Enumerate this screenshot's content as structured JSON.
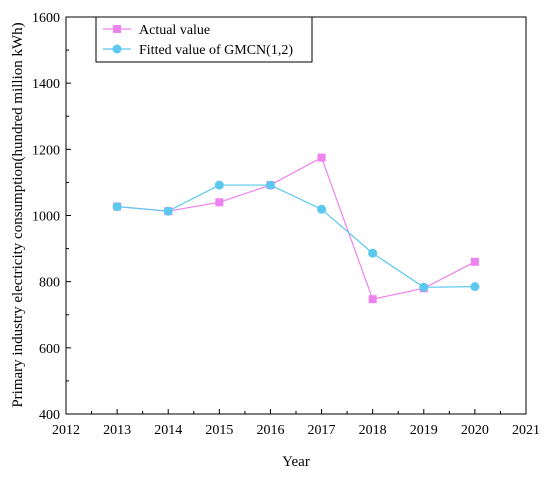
{
  "chart_data": {
    "type": "line",
    "xlabel": "Year",
    "ylabel": "Primary industry electricity consumption(hundred million kWh)",
    "xlim": [
      2012,
      2021
    ],
    "ylim": [
      400,
      1600
    ],
    "x_ticks": [
      2012,
      2013,
      2014,
      2015,
      2016,
      2017,
      2018,
      2019,
      2020,
      2021
    ],
    "y_ticks": [
      400,
      600,
      800,
      1000,
      1200,
      1400,
      1600
    ],
    "grid": false,
    "legend_position": "top-left",
    "series": [
      {
        "name": "Actual value",
        "marker": "square",
        "color": "#ee82ee",
        "x": [
          2013,
          2014,
          2015,
          2016,
          2017,
          2018,
          2019,
          2020
        ],
        "y": [
          1027,
          1013,
          1040,
          1092,
          1175,
          747,
          780,
          860
        ]
      },
      {
        "name": "Fitted value of GMCN(1,2)",
        "marker": "circle",
        "color": "#5bc8ee",
        "x": [
          2013,
          2014,
          2015,
          2016,
          2017,
          2018,
          2019,
          2020
        ],
        "y": [
          1027,
          1013,
          1092,
          1092,
          1019,
          886,
          783,
          785
        ]
      }
    ]
  }
}
